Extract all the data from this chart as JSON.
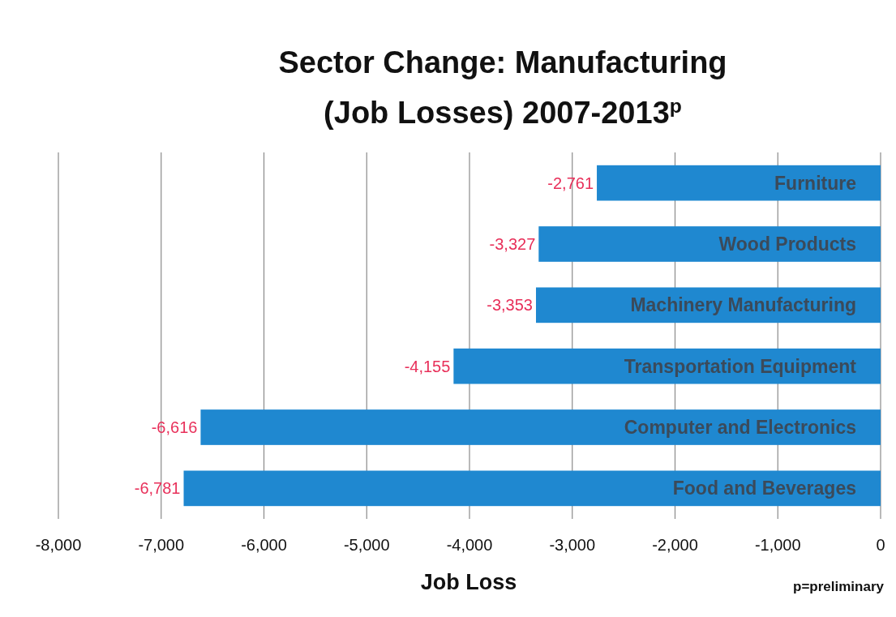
{
  "chart_data": {
    "type": "bar",
    "orientation": "horizontal",
    "title": "Sector Change: Manufacturing (Job Losses) 2007-2013$^{p}$",
    "xlabel": "Job Loss",
    "categories": [
      "Furniture",
      "Wood Products",
      "Machinery Manufacturing",
      "Transportation Equipment",
      "Computer and Electronics",
      "Food and Beverages"
    ],
    "values": [
      -2761,
      -3327,
      -3353,
      -4155,
      -6616,
      -6781
    ],
    "value_labels": [
      "-2,761",
      "-3,327",
      "-3,353",
      "-4,155",
      "-6,616",
      "-6,781"
    ],
    "color": "#1f88d0",
    "xlim": [
      -8000,
      0
    ],
    "xticks": [
      {
        "value": -8000,
        "label": "-8,000"
      },
      {
        "value": -7000,
        "label": "-7,000"
      },
      {
        "value": -6000,
        "label": "-6,000"
      },
      {
        "value": -5000,
        "label": "-5,000"
      },
      {
        "value": -4000,
        "label": "-4,000"
      },
      {
        "value": -3000,
        "label": "-3,000"
      },
      {
        "value": -2000,
        "label": "-2,000"
      },
      {
        "value": -1000,
        "label": "-1,000"
      },
      0
    ],
    "grid": "x",
    "annotations": [
      "p=preliminary"
    ]
  }
}
